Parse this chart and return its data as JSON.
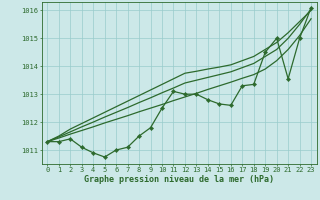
{
  "x": [
    0,
    1,
    2,
    3,
    4,
    5,
    6,
    7,
    8,
    9,
    10,
    11,
    12,
    13,
    14,
    15,
    16,
    17,
    18,
    19,
    20,
    21,
    22,
    23
  ],
  "main_line": [
    1011.3,
    1011.3,
    1011.4,
    1011.1,
    1010.9,
    1010.75,
    1011.0,
    1011.1,
    1011.5,
    1011.8,
    1012.5,
    1013.1,
    1013.0,
    1013.0,
    1012.8,
    1012.65,
    1012.6,
    1013.3,
    1013.35,
    1014.5,
    1015.0,
    1013.55,
    1015.0,
    1016.1
  ],
  "straight1": [
    1011.3,
    1011.5,
    1011.75,
    1011.95,
    1012.15,
    1012.35,
    1012.55,
    1012.75,
    1012.95,
    1013.15,
    1013.35,
    1013.55,
    1013.75,
    1013.82,
    1013.9,
    1013.97,
    1014.05,
    1014.2,
    1014.35,
    1014.6,
    1014.85,
    1015.2,
    1015.6,
    1016.0
  ],
  "straight2": [
    1011.3,
    1011.47,
    1011.65,
    1011.83,
    1012.0,
    1012.18,
    1012.35,
    1012.52,
    1012.7,
    1012.87,
    1013.05,
    1013.22,
    1013.4,
    1013.5,
    1013.6,
    1013.7,
    1013.8,
    1013.95,
    1014.1,
    1014.35,
    1014.6,
    1015.0,
    1015.5,
    1016.05
  ],
  "straight3": [
    1011.3,
    1011.43,
    1011.57,
    1011.7,
    1011.83,
    1011.97,
    1012.1,
    1012.23,
    1012.37,
    1012.5,
    1012.63,
    1012.77,
    1012.9,
    1013.03,
    1013.17,
    1013.3,
    1013.43,
    1013.57,
    1013.7,
    1013.9,
    1014.2,
    1014.6,
    1015.1,
    1015.7
  ],
  "line_color": "#2d6a2d",
  "bg_color": "#cce8e8",
  "grid_color": "#99cccc",
  "xlabel": "Graphe pression niveau de la mer (hPa)",
  "ylim": [
    1010.5,
    1016.3
  ],
  "yticks": [
    1011,
    1012,
    1013,
    1014,
    1015,
    1016
  ],
  "xticks": [
    0,
    1,
    2,
    3,
    4,
    5,
    6,
    7,
    8,
    9,
    10,
    11,
    12,
    13,
    14,
    15,
    16,
    17,
    18,
    19,
    20,
    21,
    22,
    23
  ],
  "marker": "D",
  "markersize": 2.2,
  "linewidth": 0.9
}
